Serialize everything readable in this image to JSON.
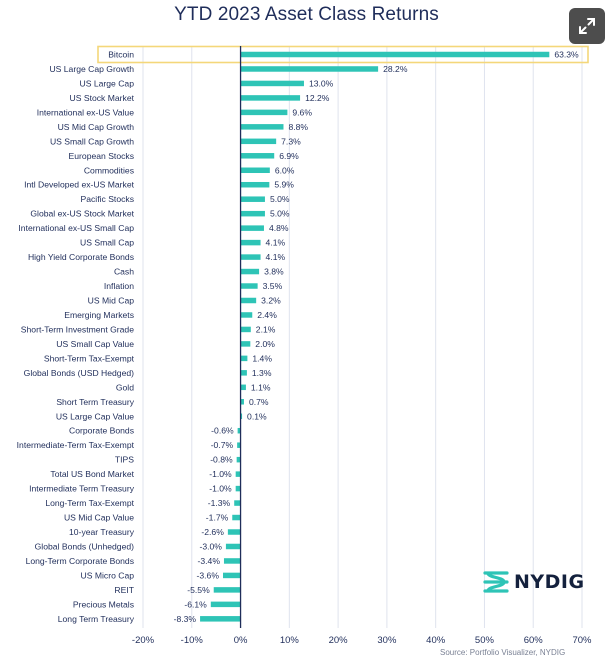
{
  "brand": {
    "name": "NYDIG",
    "logo_icon": "nydig-logo-icon",
    "accent": "#2ec4b6"
  },
  "expand_button": {
    "icon": "expand-arrows-icon"
  },
  "source_note": "Source: Portfolio Visualizer, NYDIG",
  "colors": {
    "bar": "#2ec4b6",
    "highlight": "#f4d77a",
    "axis": "#1f2d5a",
    "grid": "#dfe3ee",
    "text": "#1f2d5a"
  },
  "chart_data": {
    "type": "bar",
    "orientation": "horizontal",
    "title": "YTD 2023 Asset Class Returns",
    "xlabel": "",
    "ylabel": "",
    "xlim": [
      -20,
      70
    ],
    "xticks": [
      -20,
      -10,
      0,
      10,
      20,
      30,
      40,
      50,
      60,
      70
    ],
    "xtick_labels": [
      "-20%",
      "-10%",
      "0%",
      "10%",
      "20%",
      "30%",
      "40%",
      "50%",
      "60%",
      "70%"
    ],
    "grid": "vertical",
    "highlighted_category": "Bitcoin",
    "categories": [
      "Bitcoin",
      "US Large Cap Growth",
      "US Large Cap",
      "US Stock Market",
      "International ex-US Value",
      "US Mid Cap Growth",
      "US Small Cap Growth",
      "European Stocks",
      "Commodities",
      "Intl Developed ex-US Market",
      "Pacific Stocks",
      "Global ex-US Stock Market",
      "International ex-US Small Cap",
      "US Small Cap",
      "High Yield Corporate Bonds",
      "Cash",
      "Inflation",
      "US Mid Cap",
      "Emerging Markets",
      "Short-Term Investment Grade",
      "US Small Cap Value",
      "Short-Term Tax-Exempt",
      "Global Bonds (USD Hedged)",
      "Gold",
      "Short Term Treasury",
      "US Large Cap Value",
      "Corporate Bonds",
      "Intermediate-Term Tax-Exempt",
      "TIPS",
      "Total US Bond Market",
      "Intermediate Term Treasury",
      "Long-Term Tax-Exempt",
      "US Mid Cap Value",
      "10-year Treasury",
      "Global Bonds (Unhedged)",
      "Long-Term Corporate Bonds",
      "US Micro Cap",
      "REIT",
      "Precious Metals",
      "Long Term Treasury"
    ],
    "values": [
      63.3,
      28.2,
      13.0,
      12.2,
      9.6,
      8.8,
      7.3,
      6.9,
      6.0,
      5.9,
      5.0,
      5.0,
      4.8,
      4.1,
      4.1,
      3.8,
      3.5,
      3.2,
      2.4,
      2.1,
      2.0,
      1.4,
      1.3,
      1.1,
      0.7,
      0.1,
      -0.6,
      -0.7,
      -0.8,
      -1.0,
      -1.0,
      -1.3,
      -1.7,
      -2.6,
      -3.0,
      -3.4,
      -3.6,
      -5.5,
      -6.1,
      -8.3
    ],
    "value_labels": [
      "63.3%",
      "28.2%",
      "13.0%",
      "12.2%",
      "9.6%",
      "8.8%",
      "7.3%",
      "6.9%",
      "6.0%",
      "5.9%",
      "5.0%",
      "5.0%",
      "4.8%",
      "4.1%",
      "4.1%",
      "3.8%",
      "3.5%",
      "3.2%",
      "2.4%",
      "2.1%",
      "2.0%",
      "1.4%",
      "1.3%",
      "1.1%",
      "0.7%",
      "0.1%",
      "-0.6%",
      "-0.7%",
      "-0.8%",
      "-1.0%",
      "-1.0%",
      "-1.3%",
      "-1.7%",
      "-2.6%",
      "-3.0%",
      "-3.4%",
      "-3.6%",
      "-5.5%",
      "-6.1%",
      "-8.3%"
    ]
  }
}
